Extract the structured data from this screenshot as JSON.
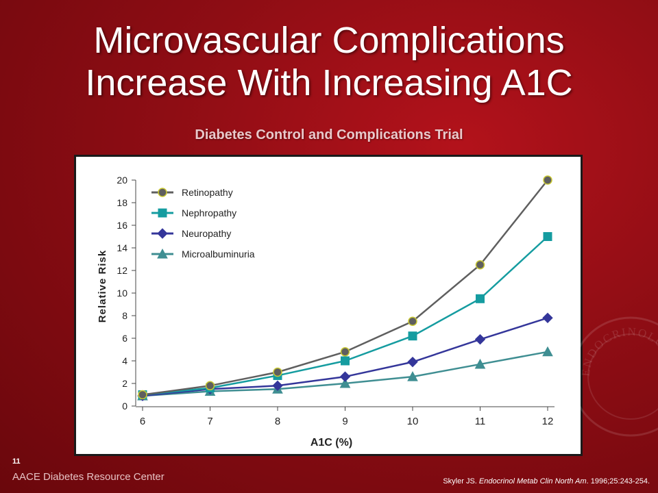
{
  "slide": {
    "title_line1": "Microvascular Complications",
    "title_line2": "Increase With Increasing A1C",
    "subtitle": "Diabetes Control and Complications Trial",
    "page_number": "11",
    "footer_brand": "AACE Diabetes Resource Center",
    "citation_author": "Skyler JS. ",
    "citation_journal": "Endocrinol Metab Clin North Am",
    "citation_rest": ". 1996;25:243-254.",
    "seal_text": "ENDOCRINOLOGISTS"
  },
  "chart_data": {
    "type": "line",
    "xlabel": "A1C (%)",
    "ylabel": "Relative Risk",
    "x": [
      6,
      7,
      8,
      9,
      10,
      11,
      12
    ],
    "xlim": [
      6,
      12
    ],
    "ylim": [
      0,
      20
    ],
    "yticks": [
      0,
      2,
      4,
      6,
      8,
      10,
      12,
      14,
      16,
      18,
      20
    ],
    "grid": false,
    "legend_position": "top-left",
    "series": [
      {
        "name": "Retinopathy",
        "marker": "circle",
        "color": "#5f5f5f",
        "marker_fill": "#5f5f5f",
        "marker_edge": "#c8c832",
        "values": [
          1,
          1.8,
          3,
          4.8,
          7.5,
          12.5,
          20
        ]
      },
      {
        "name": "Nephropathy",
        "marker": "square",
        "color": "#159ca0",
        "marker_fill": "#159ca0",
        "marker_edge": "#159ca0",
        "values": [
          1,
          1.6,
          2.7,
          4,
          6.2,
          9.5,
          15
        ]
      },
      {
        "name": "Neuropathy",
        "marker": "diamond",
        "color": "#34369a",
        "marker_fill": "#34369a",
        "marker_edge": "#34369a",
        "values": [
          0.9,
          1.5,
          1.8,
          2.6,
          3.9,
          5.9,
          7.8
        ]
      },
      {
        "name": "Microalbuminuria",
        "marker": "triangle",
        "color": "#3f8e92",
        "marker_fill": "#3f8e92",
        "marker_edge": "#3f8e92",
        "values": [
          0.9,
          1.3,
          1.5,
          2,
          2.6,
          3.7,
          4.8
        ]
      }
    ]
  }
}
